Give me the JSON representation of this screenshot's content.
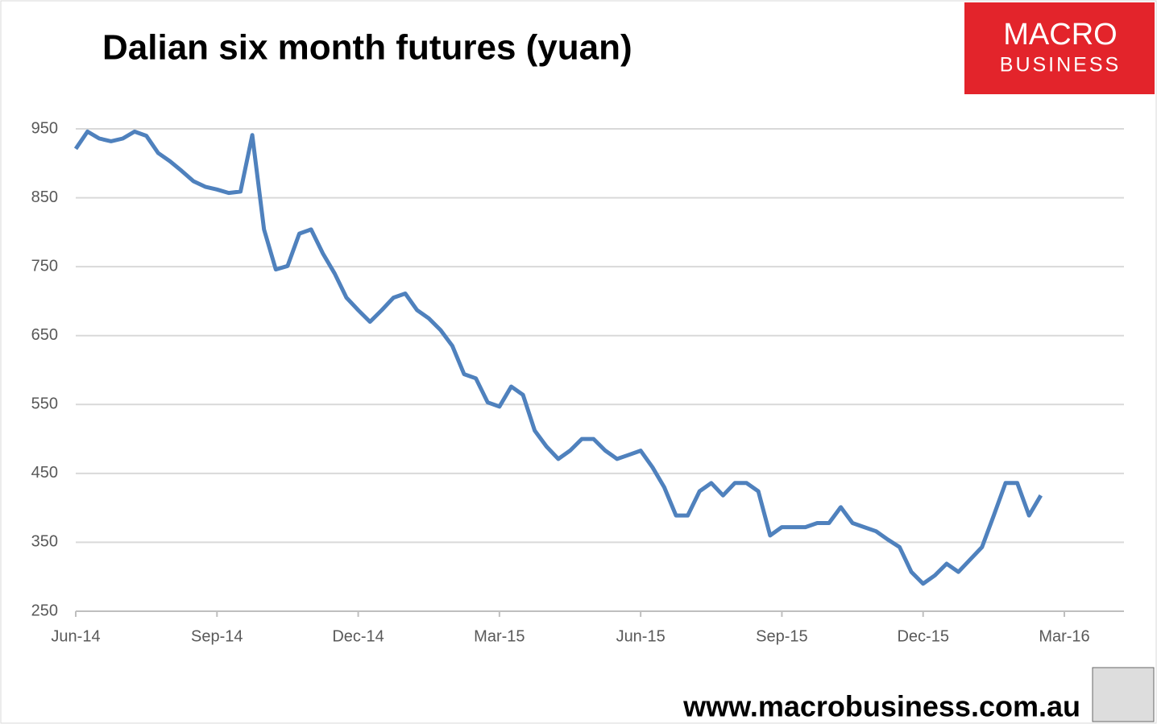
{
  "chart_data": {
    "type": "line",
    "title": "Dalian six month futures (yuan)",
    "categories": [
      "Jun-14",
      null,
      null,
      null,
      null,
      null,
      null,
      null,
      null,
      null,
      null,
      null,
      "Sep-14",
      null,
      null,
      null,
      null,
      null,
      null,
      null,
      null,
      null,
      null,
      null,
      "Dec-14",
      null,
      null,
      null,
      null,
      null,
      null,
      null,
      null,
      null,
      null,
      null,
      "Mar-15",
      null,
      null,
      null,
      null,
      null,
      null,
      null,
      null,
      null,
      null,
      null,
      "Jun-15",
      null,
      null,
      null,
      null,
      null,
      null,
      null,
      null,
      null,
      null,
      null,
      "Sep-15",
      null,
      null,
      null,
      null,
      null,
      null,
      null,
      null,
      null,
      null,
      null,
      "Dec-15",
      null,
      null,
      null,
      null,
      null,
      null,
      null,
      null,
      null,
      null,
      null,
      "Mar-16"
    ],
    "values": [
      921,
      946,
      936,
      932,
      936,
      946,
      940,
      915,
      903,
      889,
      874,
      866,
      862,
      857,
      859,
      941,
      804,
      746,
      751,
      798,
      804,
      769,
      740,
      705,
      687,
      670,
      687,
      705,
      711,
      687,
      675,
      658,
      635,
      594,
      588,
      553,
      547,
      576,
      564,
      512,
      489,
      471,
      483,
      500,
      500,
      483,
      471,
      477,
      483,
      459,
      430,
      389,
      389,
      424,
      436,
      418,
      436,
      436,
      424,
      360,
      372,
      372,
      372,
      378,
      378,
      401,
      378,
      372,
      366,
      354,
      343,
      307,
      290,
      302,
      319,
      307,
      325,
      343,
      389,
      436,
      436,
      389,
      418,
      null,
      null
    ],
    "color": "#4f81bd",
    "ylim": [
      250,
      950
    ],
    "yticks": [
      250,
      350,
      450,
      550,
      650,
      750,
      850,
      950
    ],
    "grid": true
  },
  "logo": {
    "line1": "MACRO",
    "line2": "BUSINESS"
  },
  "source": "www.macrobusiness.com.au"
}
